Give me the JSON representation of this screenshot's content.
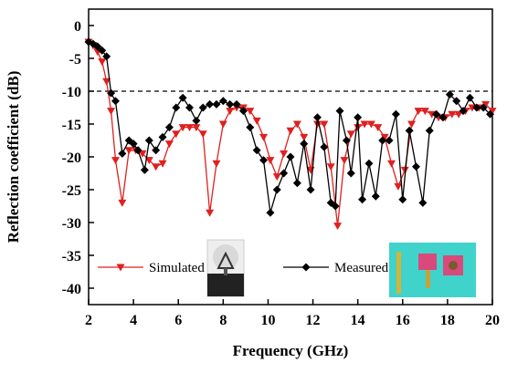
{
  "chart_data": {
    "type": "line",
    "x_label": "Frequency (GHz)",
    "y_label": "Reflection coefficient (dB)",
    "xlim": [
      2,
      20
    ],
    "ylim": [
      -42.5,
      2.5
    ],
    "xticks": [
      2,
      4,
      6,
      8,
      10,
      12,
      14,
      16,
      18,
      20
    ],
    "yticks": [
      0,
      -5,
      -10,
      -15,
      -20,
      -25,
      -30,
      -35,
      -40
    ],
    "reference_line": -10,
    "series": [
      {
        "name": "Simulated",
        "color": "#e02020",
        "marker": "triangle-down",
        "x": [
          2.0,
          2.2,
          2.4,
          2.6,
          2.8,
          3.0,
          3.2,
          3.5,
          3.8,
          4.1,
          4.4,
          4.7,
          5.0,
          5.3,
          5.6,
          5.9,
          6.2,
          6.5,
          6.8,
          7.1,
          7.4,
          7.7,
          8.0,
          8.3,
          8.6,
          8.9,
          9.2,
          9.5,
          9.8,
          10.1,
          10.4,
          10.7,
          11.0,
          11.3,
          11.6,
          11.9,
          12.2,
          12.5,
          12.8,
          13.1,
          13.4,
          13.7,
          14.0,
          14.3,
          14.6,
          14.9,
          15.2,
          15.5,
          15.8,
          16.1,
          16.4,
          16.7,
          17.0,
          17.3,
          17.6,
          17.9,
          18.2,
          18.5,
          18.8,
          19.1,
          19.4,
          19.7,
          20.0
        ],
        "values": [
          -2.5,
          -3,
          -4,
          -5.5,
          -8.5,
          -13,
          -20.5,
          -27,
          -19,
          -19,
          -19.5,
          -20.5,
          -21.5,
          -21,
          -18,
          -16.5,
          -15.5,
          -15.5,
          -15.5,
          -16.5,
          -28.5,
          -21,
          -15,
          -13,
          -12.5,
          -12.5,
          -13,
          -14.5,
          -17,
          -20.5,
          -23,
          -19.5,
          -16,
          -15,
          -17,
          -22,
          -15,
          -15,
          -21.5,
          -30.5,
          -20.5,
          -16.5,
          -15.5,
          -15,
          -15,
          -15.5,
          -17,
          -21,
          -24.5,
          -22,
          -15,
          -13,
          -13,
          -13.5,
          -14,
          -14,
          -13.5,
          -13.5,
          -13,
          -12.5,
          -12.5,
          -12,
          -13
        ]
      },
      {
        "name": "Measured",
        "color": "#000000",
        "marker": "diamond",
        "x": [
          2.0,
          2.2,
          2.4,
          2.6,
          2.8,
          3.0,
          3.2,
          3.5,
          3.8,
          4.0,
          4.2,
          4.5,
          4.7,
          5.0,
          5.3,
          5.6,
          5.9,
          6.2,
          6.5,
          6.8,
          7.1,
          7.4,
          7.7,
          8.0,
          8.3,
          8.6,
          8.9,
          9.2,
          9.5,
          9.8,
          10.1,
          10.4,
          10.7,
          11.0,
          11.3,
          11.6,
          11.9,
          12.2,
          12.5,
          12.8,
          13.0,
          13.2,
          13.5,
          13.7,
          14.0,
          14.2,
          14.5,
          14.8,
          15.1,
          15.4,
          15.7,
          16.0,
          16.3,
          16.6,
          16.9,
          17.2,
          17.5,
          17.8,
          18.1,
          18.4,
          18.7,
          19.0,
          19.3,
          19.6,
          19.9
        ],
        "values": [
          -2.5,
          -2.8,
          -3.2,
          -3.8,
          -4.7,
          -10.3,
          -11.5,
          -19.5,
          -17.5,
          -18,
          -19,
          -22,
          -17.5,
          -19,
          -17,
          -15.5,
          -12.5,
          -11,
          -12.5,
          -14.5,
          -12.5,
          -12,
          -12,
          -11.5,
          -12,
          -12,
          -13,
          -15.5,
          -19,
          -20.5,
          -28.5,
          -25,
          -22.5,
          -20,
          -24,
          -18,
          -25,
          -14,
          -18.5,
          -27,
          -27.5,
          -13,
          -17.5,
          -22.5,
          -14,
          -26.5,
          -21,
          -26,
          -17.5,
          -17.5,
          -13.5,
          -26.5,
          -16,
          -21.5,
          -27,
          -16,
          -13.5,
          -14,
          -10.5,
          -11.5,
          -13,
          -11,
          -12.5,
          -12.5,
          -13.5
        ]
      }
    ]
  }
}
